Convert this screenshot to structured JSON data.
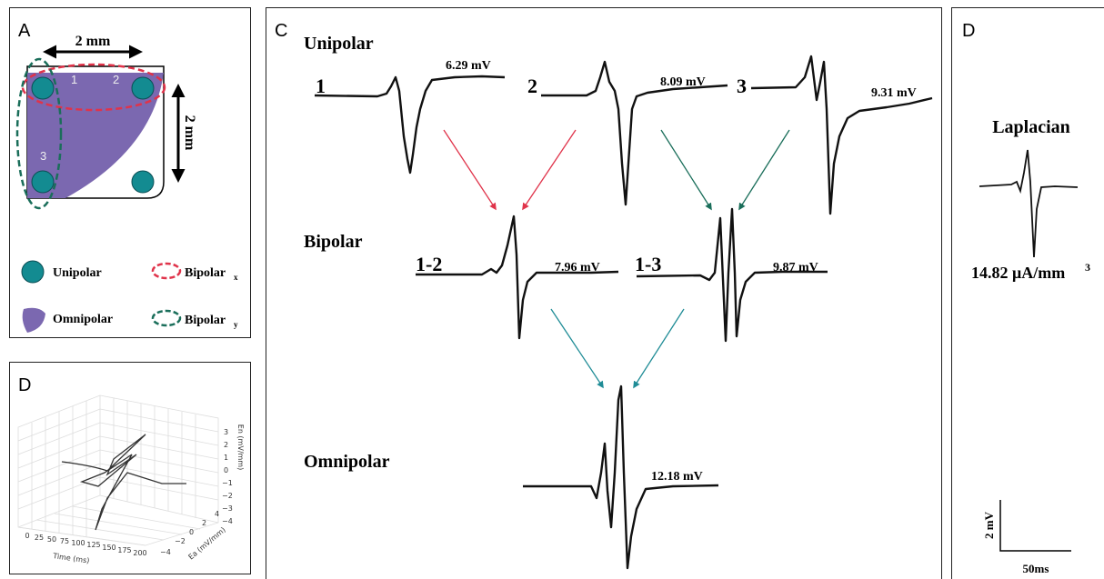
{
  "panel_a": {
    "label": "A",
    "width_label": "2 mm",
    "height_label": "2 mm",
    "electrodes": [
      "1",
      "2",
      "3"
    ],
    "legend": [
      {
        "label": "Unipolar"
      },
      {
        "label": "Bipolar",
        "subscript": "x"
      },
      {
        "label": "Omnipolar"
      },
      {
        "label": "Bipolar",
        "subscript": "y"
      }
    ]
  },
  "panel_d_3d": {
    "label": "D",
    "x_label": "Time (ms)",
    "y_label": "Ea (mV/mm)",
    "z_label": "En (mV/mm)",
    "x_ticks": [
      "0",
      "25",
      "50",
      "75",
      "100",
      "125",
      "150",
      "175",
      "200"
    ],
    "y_ticks": [
      "−4",
      "−2",
      "0",
      "2",
      "4"
    ],
    "z_ticks": [
      "3",
      "2",
      "1",
      "0",
      "−1",
      "−2",
      "−3",
      "−4"
    ]
  },
  "panel_c": {
    "label": "C",
    "rows": [
      {
        "title": "Unipolar",
        "traces": [
          {
            "name": "1",
            "amplitude": "6.29 mV"
          },
          {
            "name": "2",
            "amplitude": "8.09 mV"
          },
          {
            "name": "3",
            "amplitude": "9.31 mV"
          }
        ]
      },
      {
        "title": "Bipolar",
        "traces": [
          {
            "name": "1-2",
            "amplitude": "7.96 mV"
          },
          {
            "name": "1-3",
            "amplitude": "9.87 mV"
          }
        ]
      },
      {
        "title": "Omnipolar",
        "traces": [
          {
            "amplitude": "12.18 mV"
          }
        ]
      }
    ]
  },
  "panel_d_laplacian": {
    "label": "D",
    "title": "Laplacian",
    "amplitude": "14.82 μA/mm",
    "amplitude_superscript": "3",
    "scale_y": "2 mV",
    "scale_x": "50ms"
  }
}
